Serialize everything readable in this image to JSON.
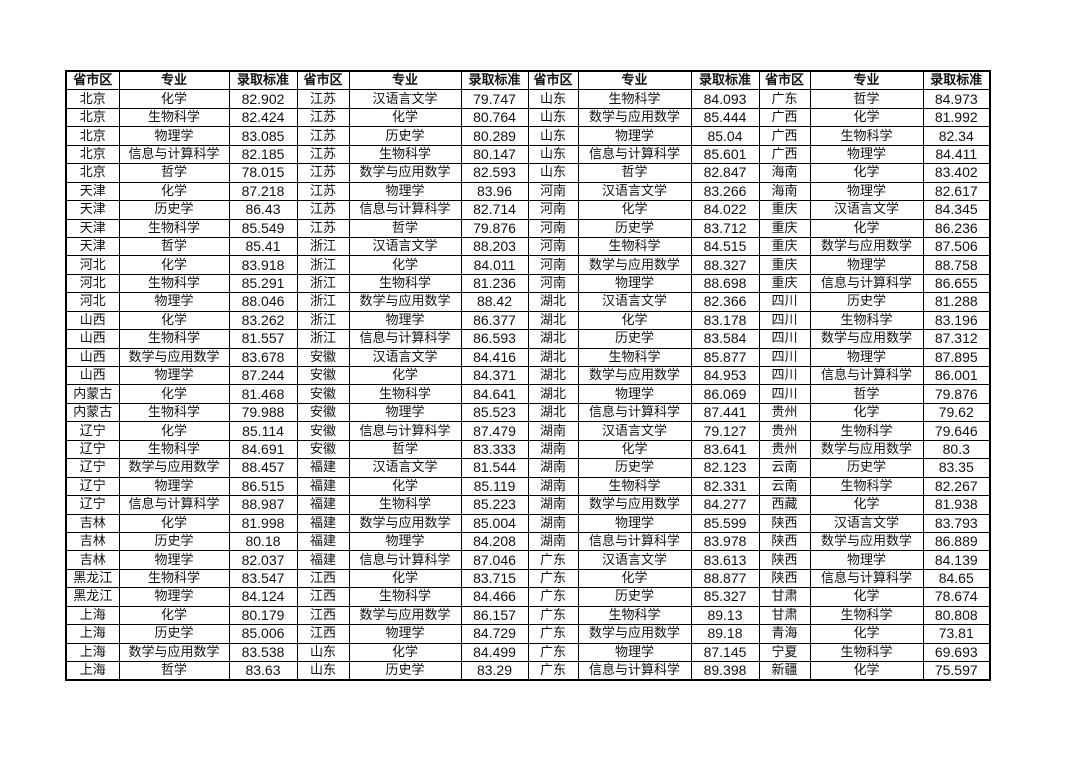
{
  "headers": [
    "省市区",
    "专业",
    "录取标准",
    "省市区",
    "专业",
    "录取标准",
    "省市区",
    "专业",
    "录取标准",
    "省市区",
    "专业",
    "录取标准"
  ],
  "rows": [
    [
      "北京",
      "化学",
      "82.902",
      "江苏",
      "汉语言文学",
      "79.747",
      "山东",
      "生物科学",
      "84.093",
      "广东",
      "哲学",
      "84.973"
    ],
    [
      "北京",
      "生物科学",
      "82.424",
      "江苏",
      "化学",
      "80.764",
      "山东",
      "数学与应用数学",
      "85.444",
      "广西",
      "化学",
      "81.992"
    ],
    [
      "北京",
      "物理学",
      "83.085",
      "江苏",
      "历史学",
      "80.289",
      "山东",
      "物理学",
      "85.04",
      "广西",
      "生物科学",
      "82.34"
    ],
    [
      "北京",
      "信息与计算科学",
      "82.185",
      "江苏",
      "生物科学",
      "80.147",
      "山东",
      "信息与计算科学",
      "85.601",
      "广西",
      "物理学",
      "84.411"
    ],
    [
      "北京",
      "哲学",
      "78.015",
      "江苏",
      "数学与应用数学",
      "82.593",
      "山东",
      "哲学",
      "82.847",
      "海南",
      "化学",
      "83.402"
    ],
    [
      "天津",
      "化学",
      "87.218",
      "江苏",
      "物理学",
      "83.96",
      "河南",
      "汉语言文学",
      "83.266",
      "海南",
      "物理学",
      "82.617"
    ],
    [
      "天津",
      "历史学",
      "86.43",
      "江苏",
      "信息与计算科学",
      "82.714",
      "河南",
      "化学",
      "84.022",
      "重庆",
      "汉语言文学",
      "84.345"
    ],
    [
      "天津",
      "生物科学",
      "85.549",
      "江苏",
      "哲学",
      "79.876",
      "河南",
      "历史学",
      "83.712",
      "重庆",
      "化学",
      "86.236"
    ],
    [
      "天津",
      "哲学",
      "85.41",
      "浙江",
      "汉语言文学",
      "88.203",
      "河南",
      "生物科学",
      "84.515",
      "重庆",
      "数学与应用数学",
      "87.506"
    ],
    [
      "河北",
      "化学",
      "83.918",
      "浙江",
      "化学",
      "84.011",
      "河南",
      "数学与应用数学",
      "88.327",
      "重庆",
      "物理学",
      "88.758"
    ],
    [
      "河北",
      "生物科学",
      "85.291",
      "浙江",
      "生物科学",
      "81.236",
      "河南",
      "物理学",
      "88.698",
      "重庆",
      "信息与计算科学",
      "86.655"
    ],
    [
      "河北",
      "物理学",
      "88.046",
      "浙江",
      "数学与应用数学",
      "88.42",
      "湖北",
      "汉语言文学",
      "82.366",
      "四川",
      "历史学",
      "81.288"
    ],
    [
      "山西",
      "化学",
      "83.262",
      "浙江",
      "物理学",
      "86.377",
      "湖北",
      "化学",
      "83.178",
      "四川",
      "生物科学",
      "83.196"
    ],
    [
      "山西",
      "生物科学",
      "81.557",
      "浙江",
      "信息与计算科学",
      "86.593",
      "湖北",
      "历史学",
      "83.584",
      "四川",
      "数学与应用数学",
      "87.312"
    ],
    [
      "山西",
      "数学与应用数学",
      "83.678",
      "安徽",
      "汉语言文学",
      "84.416",
      "湖北",
      "生物科学",
      "85.877",
      "四川",
      "物理学",
      "87.895"
    ],
    [
      "山西",
      "物理学",
      "87.244",
      "安徽",
      "化学",
      "84.371",
      "湖北",
      "数学与应用数学",
      "84.953",
      "四川",
      "信息与计算科学",
      "86.001"
    ],
    [
      "内蒙古",
      "化学",
      "81.468",
      "安徽",
      "生物科学",
      "84.641",
      "湖北",
      "物理学",
      "86.069",
      "四川",
      "哲学",
      "79.876"
    ],
    [
      "内蒙古",
      "生物科学",
      "79.988",
      "安徽",
      "物理学",
      "85.523",
      "湖北",
      "信息与计算科学",
      "87.441",
      "贵州",
      "化学",
      "79.62"
    ],
    [
      "辽宁",
      "化学",
      "85.114",
      "安徽",
      "信息与计算科学",
      "87.479",
      "湖南",
      "汉语言文学",
      "79.127",
      "贵州",
      "生物科学",
      "79.646"
    ],
    [
      "辽宁",
      "生物科学",
      "84.691",
      "安徽",
      "哲学",
      "83.333",
      "湖南",
      "化学",
      "83.641",
      "贵州",
      "数学与应用数学",
      "80.3"
    ],
    [
      "辽宁",
      "数学与应用数学",
      "88.457",
      "福建",
      "汉语言文学",
      "81.544",
      "湖南",
      "历史学",
      "82.123",
      "云南",
      "历史学",
      "83.35"
    ],
    [
      "辽宁",
      "物理学",
      "86.515",
      "福建",
      "化学",
      "85.119",
      "湖南",
      "生物科学",
      "82.331",
      "云南",
      "生物科学",
      "82.267"
    ],
    [
      "辽宁",
      "信息与计算科学",
      "88.987",
      "福建",
      "生物科学",
      "85.223",
      "湖南",
      "数学与应用数学",
      "84.277",
      "西藏",
      "化学",
      "81.938"
    ],
    [
      "吉林",
      "化学",
      "81.998",
      "福建",
      "数学与应用数学",
      "85.004",
      "湖南",
      "物理学",
      "85.599",
      "陕西",
      "汉语言文学",
      "83.793"
    ],
    [
      "吉林",
      "历史学",
      "80.18",
      "福建",
      "物理学",
      "84.208",
      "湖南",
      "信息与计算科学",
      "83.978",
      "陕西",
      "数学与应用数学",
      "86.889"
    ],
    [
      "吉林",
      "物理学",
      "82.037",
      "福建",
      "信息与计算科学",
      "87.046",
      "广东",
      "汉语言文学",
      "83.613",
      "陕西",
      "物理学",
      "84.139"
    ],
    [
      "黑龙江",
      "生物科学",
      "83.547",
      "江西",
      "化学",
      "83.715",
      "广东",
      "化学",
      "88.877",
      "陕西",
      "信息与计算科学",
      "84.65"
    ],
    [
      "黑龙江",
      "物理学",
      "84.124",
      "江西",
      "生物科学",
      "84.466",
      "广东",
      "历史学",
      "85.327",
      "甘肃",
      "化学",
      "78.674"
    ],
    [
      "上海",
      "化学",
      "80.179",
      "江西",
      "数学与应用数学",
      "86.157",
      "广东",
      "生物科学",
      "89.13",
      "甘肃",
      "生物科学",
      "80.808"
    ],
    [
      "上海",
      "历史学",
      "85.006",
      "江西",
      "物理学",
      "84.729",
      "广东",
      "数学与应用数学",
      "89.18",
      "青海",
      "化学",
      "73.81"
    ],
    [
      "上海",
      "数学与应用数学",
      "83.538",
      "山东",
      "化学",
      "84.499",
      "广东",
      "物理学",
      "87.145",
      "宁夏",
      "生物科学",
      "69.693"
    ],
    [
      "上海",
      "哲学",
      "83.63",
      "山东",
      "历史学",
      "83.29",
      "广东",
      "信息与计算科学",
      "89.398",
      "新疆",
      "化学",
      "75.597"
    ]
  ]
}
